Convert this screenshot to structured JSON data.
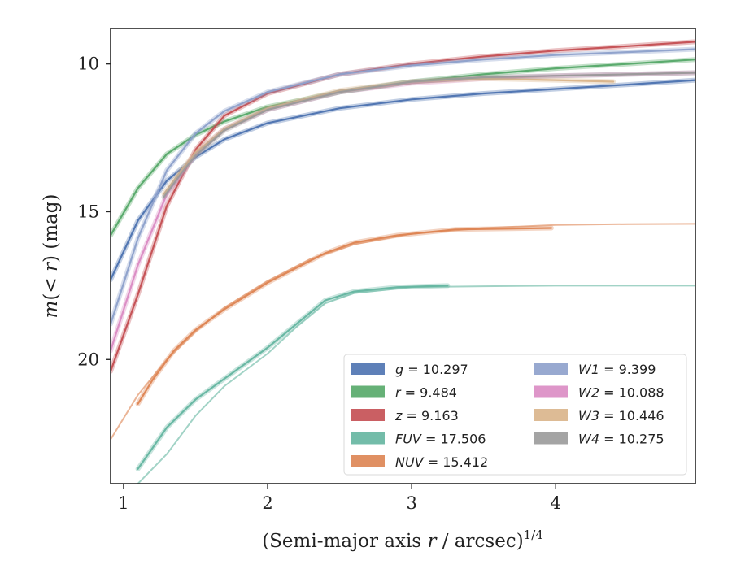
{
  "chart_data": {
    "type": "line",
    "xlabel": "(Semi-major axis r / arcsec)",
    "xlabel_parts": {
      "prefix": "(Semi-major axis ",
      "italic_var": "r",
      "middle": " / arcsec)",
      "superscript": "1/4"
    },
    "ylabel": "m(< r) (mag)",
    "ylabel_parts": {
      "italic_m": "m",
      "open": "(",
      "lt": "< ",
      "italic_r": "r",
      "close": ") (mag)"
    },
    "xlim": [
      0.91,
      4.97
    ],
    "ylim": [
      24.2,
      8.8
    ],
    "y_inverted": true,
    "xticks": [
      1,
      2,
      3,
      4
    ],
    "xtick_labels": [
      "1",
      "2",
      "3",
      "4"
    ],
    "yticks": [
      10,
      15,
      20
    ],
    "ytick_labels": [
      "10",
      "15",
      "20"
    ],
    "grid": false,
    "legend_position": "lower right",
    "legend_entries": [
      {
        "label": "g = 10.297"
      },
      {
        "label": "r = 9.484"
      },
      {
        "label": "z = 9.163"
      },
      {
        "label": "FUV = 17.506"
      },
      {
        "label": "NUV = 15.412"
      },
      {
        "label": "W1 = 9.399"
      },
      {
        "label": "W2 = 10.088"
      },
      {
        "label": "W3 = 10.446"
      },
      {
        "label": "W4 = 10.275"
      }
    ],
    "series": [
      {
        "name": "g = 10.297",
        "color": "#4c72b0",
        "x": [
          0.91,
          1.1,
          1.3,
          1.5,
          1.7,
          2.0,
          2.5,
          3.0,
          3.5,
          4.0,
          4.5,
          4.97
        ],
        "y": [
          17.3,
          15.3,
          13.95,
          13.15,
          12.55,
          12.0,
          11.5,
          11.2,
          11.0,
          10.85,
          10.7,
          10.55
        ]
      },
      {
        "name": "r = 9.484",
        "color": "#55a868",
        "x": [
          0.91,
          1.1,
          1.3,
          1.5,
          1.7,
          2.0,
          2.5,
          3.0,
          3.5,
          4.0,
          4.5,
          4.97
        ],
        "y": [
          15.8,
          14.2,
          13.05,
          12.4,
          11.95,
          11.45,
          10.95,
          10.6,
          10.35,
          10.15,
          10.0,
          9.85
        ]
      },
      {
        "name": "z = 9.163",
        "color": "#c44e52",
        "x": [
          0.91,
          1.1,
          1.3,
          1.5,
          1.7,
          2.0,
          2.5,
          3.0,
          3.5,
          4.0,
          4.5,
          4.97
        ],
        "y": [
          20.4,
          17.8,
          14.8,
          12.9,
          11.75,
          11.0,
          10.35,
          10.0,
          9.75,
          9.55,
          9.4,
          9.25
        ]
      },
      {
        "name": "FUV = 17.506",
        "color": "#64b5a0",
        "x": [
          1.1,
          1.2,
          1.3,
          1.5,
          1.7,
          2.0,
          2.2,
          2.4,
          2.6,
          2.9,
          3.25
        ],
        "y": [
          23.7,
          23.0,
          22.3,
          21.35,
          20.65,
          19.6,
          18.8,
          18.0,
          17.7,
          17.55,
          17.5
        ]
      },
      {
        "name": "FUV = 17.506",
        "color": "#64b5a0",
        "thin": true,
        "x": [
          1.1,
          1.3,
          1.5,
          1.7,
          2.0,
          2.2,
          2.4,
          2.6,
          3.0,
          3.5,
          4.0,
          4.5,
          4.97
        ],
        "y": [
          24.2,
          23.2,
          21.9,
          20.9,
          19.8,
          18.9,
          18.1,
          17.75,
          17.55,
          17.52,
          17.5,
          17.5,
          17.5
        ]
      },
      {
        "name": "NUV = 15.412",
        "color": "#dd8452",
        "x": [
          1.1,
          1.2,
          1.35,
          1.5,
          1.7,
          2.0,
          2.2,
          2.4,
          2.6,
          2.9,
          3.3,
          3.97
        ],
        "y": [
          21.5,
          20.7,
          19.7,
          19.0,
          18.3,
          17.4,
          16.9,
          16.4,
          16.05,
          15.8,
          15.6,
          15.55
        ]
      },
      {
        "name": "NUV = 15.412",
        "color": "#dd8452",
        "thin": true,
        "x": [
          0.91,
          1.1,
          1.3,
          1.5,
          1.7,
          2.0,
          2.3,
          2.6,
          3.0,
          3.5,
          4.0,
          4.5,
          4.97
        ],
        "y": [
          22.7,
          21.2,
          20.0,
          19.05,
          18.25,
          17.35,
          16.6,
          16.1,
          15.75,
          15.55,
          15.45,
          15.42,
          15.41
        ]
      },
      {
        "name": "W1 = 9.399",
        "color": "#8da0cb",
        "x": [
          0.91,
          1.1,
          1.3,
          1.5,
          1.7,
          2.0,
          2.5,
          3.0,
          3.5,
          4.0,
          4.5,
          4.97
        ],
        "y": [
          18.8,
          15.9,
          13.6,
          12.35,
          11.6,
          10.95,
          10.35,
          10.05,
          9.85,
          9.7,
          9.6,
          9.5
        ]
      },
      {
        "name": "W2 = 10.088",
        "color": "#da8bc3",
        "x": [
          0.91,
          1.1,
          1.3,
          1.5,
          1.7,
          2.0,
          2.5,
          3.0,
          3.5,
          4.0,
          4.5,
          4.97
        ],
        "y": [
          19.7,
          16.8,
          14.4,
          13.05,
          12.2,
          11.55,
          10.95,
          10.65,
          10.5,
          10.4,
          10.35,
          10.3
        ]
      },
      {
        "name": "W3 = 10.446",
        "color": "#d9b48a",
        "x": [
          1.28,
          1.4,
          1.5,
          1.7,
          2.0,
          2.5,
          3.0,
          3.5,
          4.0,
          4.4
        ],
        "y": [
          14.4,
          13.6,
          13.0,
          12.2,
          11.5,
          10.9,
          10.6,
          10.5,
          10.55,
          10.6
        ]
      },
      {
        "name": "W4 = 10.275",
        "color": "#9a9a9a",
        "x": [
          1.28,
          1.4,
          1.5,
          1.7,
          2.0,
          2.5,
          3.0,
          3.5,
          4.0,
          4.5,
          4.97
        ],
        "y": [
          14.5,
          13.7,
          13.1,
          12.25,
          11.55,
          10.95,
          10.6,
          10.45,
          10.4,
          10.35,
          10.3
        ]
      }
    ]
  }
}
